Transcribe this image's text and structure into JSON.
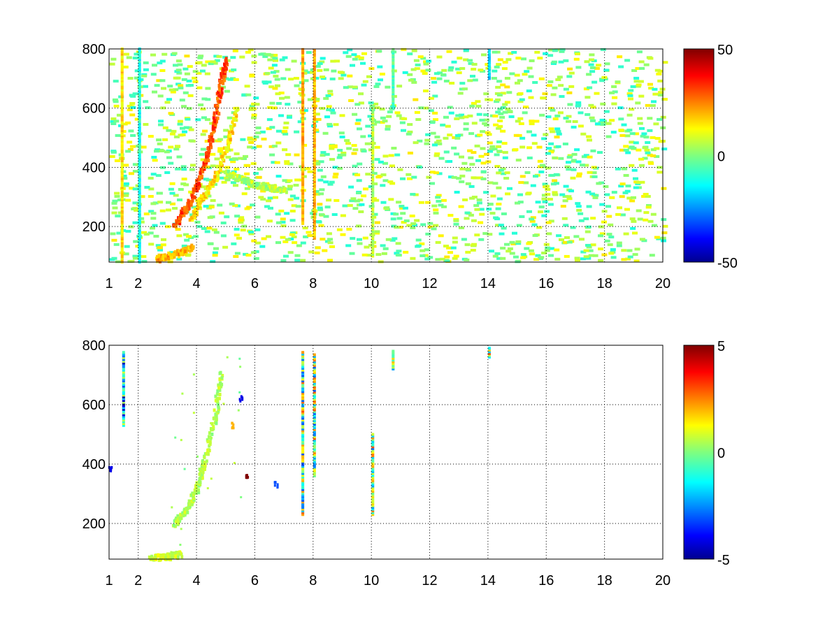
{
  "chart_data": [
    {
      "type": "heatmap",
      "title": "",
      "xlabel": "",
      "ylabel": "",
      "xlim": [
        1,
        20
      ],
      "ylim": [
        80,
        800
      ],
      "xticks": [
        1,
        2,
        4,
        6,
        8,
        10,
        12,
        14,
        16,
        18,
        20
      ],
      "xtick_labels": [
        "1",
        "2",
        "4",
        "6",
        "8",
        "10",
        "12",
        "14",
        "16",
        "18",
        "20"
      ],
      "yticks": [
        200,
        400,
        600,
        800
      ],
      "ytick_labels": [
        "200",
        "400",
        "600",
        "800"
      ],
      "grid": true,
      "colormap": "jet",
      "colorbar": {
        "min": -50,
        "max": 50,
        "ticks": [
          50,
          0,
          -50
        ],
        "tick_labels": [
          "50",
          "0",
          "-50"
        ]
      },
      "features": [
        {
          "kind": "ridge",
          "x": [
            3.2,
            3.6,
            4.0,
            4.3,
            4.6,
            4.8,
            5.0
          ],
          "y": [
            200,
            260,
            340,
            430,
            560,
            680,
            760
          ],
          "value": 30
        },
        {
          "kind": "ridge",
          "x": [
            3.8,
            4.2,
            4.6,
            5.0,
            5.4
          ],
          "y": [
            230,
            300,
            360,
            470,
            600
          ],
          "value": 15
        },
        {
          "kind": "ridge",
          "x": [
            5.0,
            5.5,
            6.0,
            6.5,
            7.0
          ],
          "y": [
            380,
            360,
            340,
            330,
            320
          ],
          "value": 5
        },
        {
          "kind": "ridge",
          "x": [
            2.6,
            3.0,
            3.4,
            3.8
          ],
          "y": [
            90,
            100,
            110,
            130
          ],
          "value": 20
        },
        {
          "kind": "stripe",
          "x": 7.6,
          "y": [
            210,
            800
          ],
          "value": 20
        },
        {
          "kind": "stripe",
          "x": 8.0,
          "y": [
            160,
            800
          ],
          "value": 20
        },
        {
          "kind": "stripe",
          "x": 10.0,
          "y": [
            100,
            600
          ],
          "value": 5
        },
        {
          "kind": "stripe",
          "x": 10.7,
          "y": [
            600,
            800
          ],
          "value": -5
        },
        {
          "kind": "stripe",
          "x": 1.4,
          "y": [
            80,
            800
          ],
          "value": 15
        },
        {
          "kind": "stripe",
          "x": 2.0,
          "y": [
            80,
            800
          ],
          "value": -10
        },
        {
          "kind": "stripe",
          "x": 14.0,
          "y": [
            700,
            800
          ],
          "value": -15
        }
      ]
    },
    {
      "type": "heatmap",
      "title": "",
      "xlabel": "",
      "ylabel": "",
      "xlim": [
        1,
        20
      ],
      "ylim": [
        80,
        800
      ],
      "xticks": [
        1,
        2,
        4,
        6,
        8,
        10,
        12,
        14,
        16,
        18,
        20
      ],
      "xtick_labels": [
        "1",
        "2",
        "4",
        "6",
        "8",
        "10",
        "12",
        "14",
        "16",
        "18",
        "20"
      ],
      "yticks": [
        200,
        400,
        600,
        800
      ],
      "ytick_labels": [
        "200",
        "400",
        "600",
        "800"
      ],
      "grid": true,
      "colormap": "jet",
      "colorbar": {
        "min": -5,
        "max": 5,
        "ticks": [
          5,
          0,
          -5
        ],
        "tick_labels": [
          "5",
          "0",
          "-5"
        ]
      },
      "features": [
        {
          "kind": "ridge",
          "x": [
            3.2,
            3.6,
            4.0,
            4.2,
            4.6,
            4.8
          ],
          "y": [
            200,
            240,
            320,
            400,
            560,
            700
          ],
          "value": 0.5
        },
        {
          "kind": "ridge",
          "x": [
            2.4,
            3.0,
            3.4
          ],
          "y": [
            85,
            88,
            95
          ],
          "value": 0.8
        },
        {
          "kind": "stripe",
          "x": 7.6,
          "y": [
            230,
            780
          ],
          "value": 0
        },
        {
          "kind": "stripe",
          "x": 8.0,
          "y": [
            360,
            770
          ],
          "value": 0
        },
        {
          "kind": "stripe",
          "x": 10.0,
          "y": [
            230,
            500
          ],
          "value": 0
        },
        {
          "kind": "stripe",
          "x": 10.7,
          "y": [
            720,
            780
          ],
          "value": 0.5
        },
        {
          "kind": "stripe",
          "x": 14.0,
          "y": [
            760,
            790
          ],
          "value": 0.5
        },
        {
          "kind": "stripe",
          "x": 1.45,
          "y": [
            530,
            780
          ],
          "value": -2
        },
        {
          "kind": "cluster",
          "x": 5.7,
          "y": 360,
          "value": 5
        },
        {
          "kind": "cluster",
          "x": 5.2,
          "y": 530,
          "value": 2
        },
        {
          "kind": "cluster",
          "x": 5.5,
          "y": 620,
          "value": -4
        },
        {
          "kind": "cluster",
          "x": 6.7,
          "y": 330,
          "value": -3
        },
        {
          "kind": "cluster",
          "x": 1.02,
          "y": 380,
          "value": -4
        }
      ]
    }
  ]
}
